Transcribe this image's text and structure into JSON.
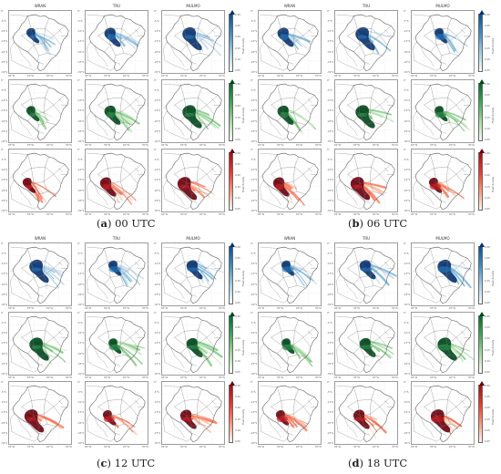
{
  "panels": [
    {
      "letter": "a",
      "time": "00 UTC"
    },
    {
      "letter": "b",
      "time": "06 UTC"
    },
    {
      "letter": "c",
      "time": "12 UTC"
    },
    {
      "letter": "d",
      "time": "18 UTC"
    }
  ],
  "column_titles": [
    "WRAN",
    "TRU",
    "MULMO"
  ],
  "lat_ticks": [
    "0°",
    "-5°S",
    "-10°S",
    "-15°S",
    "-20°S",
    "-25°S",
    "-30°S"
  ],
  "lon_ticks": [
    "65°W",
    "55°W",
    "45°W",
    "35°W"
  ],
  "colorbar": {
    "ticks": [
      "0.30",
      "0.25",
      "0.20",
      "0.15",
      "0.10",
      "0.05"
    ],
    "label": "Flash density"
  },
  "colors": {
    "blue": "#08519c",
    "green": "#00441b",
    "red": "#a50f15",
    "border": "#7f7f7f"
  }
}
